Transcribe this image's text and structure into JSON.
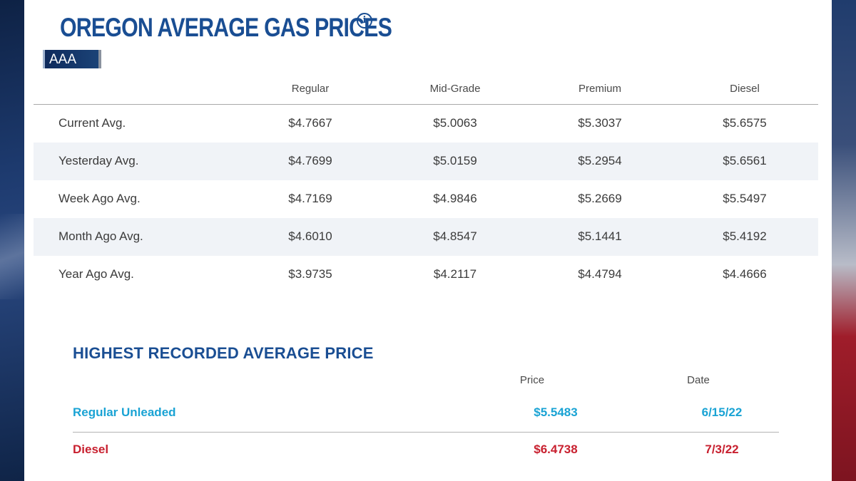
{
  "header": {
    "title": "OREGON AVERAGE GAS PRICES",
    "info_icon": "info-circle-icon",
    "source": "AAA"
  },
  "table": {
    "columns": [
      "Regular",
      "Mid-Grade",
      "Premium",
      "Diesel"
    ],
    "rows": [
      {
        "label": "Current Avg.",
        "values": [
          "$4.7667",
          "$5.0063",
          "$5.3037",
          "$5.6575"
        ]
      },
      {
        "label": "Yesterday Avg.",
        "values": [
          "$4.7699",
          "$5.0159",
          "$5.2954",
          "$5.6561"
        ]
      },
      {
        "label": "Week Ago Avg.",
        "values": [
          "$4.7169",
          "$4.9846",
          "$5.2669",
          "$5.5497"
        ]
      },
      {
        "label": "Month Ago Avg.",
        "values": [
          "$4.6010",
          "$4.8547",
          "$5.1441",
          "$5.4192"
        ]
      },
      {
        "label": "Year Ago Avg.",
        "values": [
          "$3.9735",
          "$4.2117",
          "$4.4794",
          "$4.4666"
        ]
      }
    ]
  },
  "highest": {
    "title": "HIGHEST RECORDED AVERAGE PRICE",
    "columns": {
      "price": "Price",
      "date": "Date"
    },
    "rows": [
      {
        "label": "Regular Unleaded",
        "price": "$5.5483",
        "date": "6/15/22",
        "color": "#1aa3d4"
      },
      {
        "label": "Diesel",
        "price": "$6.4738",
        "date": "7/3/22",
        "color": "#c8202f"
      }
    ]
  },
  "colors": {
    "title": "#1a4e93",
    "row_shade": "#f0f3f7",
    "regular_accent": "#1aa3d4",
    "diesel_accent": "#c8202f"
  }
}
